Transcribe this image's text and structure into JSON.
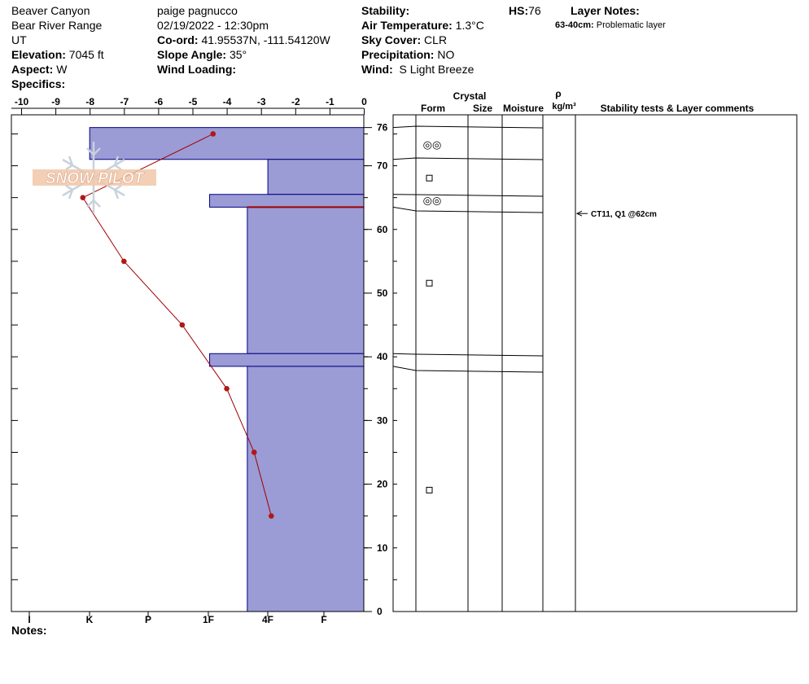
{
  "header": {
    "location": "Beaver Canyon",
    "range": "Bear River Range",
    "state": "UT",
    "elevation_label": "Elevation:",
    "elevation_value": "7045 ft",
    "aspect_label": "Aspect:",
    "aspect_value": "W",
    "specifics_label": "Specifics:",
    "observer": "paige pagnucco",
    "datetime": "02/19/2022 - 12:30pm",
    "coord_label": "Co-ord:",
    "coord_value": "41.95537N, -111.54120W",
    "slope_label": "Slope Angle:",
    "slope_value": "35°",
    "wind_loading_label": "Wind Loading:",
    "stability_label": "Stability:",
    "air_temp_label": "Air Temperature:",
    "air_temp_value": "1.3°C",
    "sky_label": "Sky Cover:",
    "sky_value": "CLR",
    "precip_label": "Precipitation:",
    "precip_value": "NO",
    "wind_label": "Wind:",
    "wind_value": "S Light Breeze",
    "hs_label": "HS:",
    "hs_value": "76",
    "layer_notes_label": "Layer Notes:",
    "layer_note_range": "63-40cm:",
    "layer_note_text": "Problematic layer"
  },
  "notes_label": "Notes:",
  "logo_text": "SNOW PILOT",
  "table_headers": {
    "crystal": "Crystal",
    "form": "Form",
    "size": "Size",
    "moisture": "Moisture",
    "rho": "ρ",
    "density_unit": "kg/m³",
    "comments": "Stability tests & Layer comments"
  },
  "stability_test": "CT11, Q1 @62cm",
  "chart_data": {
    "type": "snow-profile",
    "temperature_axis": {
      "ticks": [
        "-10",
        "-9",
        "-8",
        "-7",
        "-6",
        "-5",
        "-4",
        "-3",
        "-2",
        "-1",
        "0"
      ],
      "range": [
        -10,
        0
      ]
    },
    "depth_axis": {
      "ticks": [
        "76",
        "70",
        "60",
        "50",
        "40",
        "30",
        "20",
        "10",
        "0"
      ],
      "range": [
        0,
        76
      ],
      "unit": "cm"
    },
    "hardness_axis": {
      "ticks": [
        "I",
        "K",
        "P",
        "1F",
        "4F",
        "F"
      ]
    },
    "temperature_profile": [
      {
        "depth": 75,
        "temp": -4.4
      },
      {
        "depth": 65,
        "temp": -8.2
      },
      {
        "depth": 55,
        "temp": -7.0
      },
      {
        "depth": 45,
        "temp": -5.3
      },
      {
        "depth": 35,
        "temp": -4.0
      },
      {
        "depth": 25,
        "temp": -3.2
      },
      {
        "depth": 15,
        "temp": -2.7
      }
    ],
    "layers": [
      {
        "top": 76,
        "bottom": 71,
        "hardness": 8.0,
        "form": "◎◎"
      },
      {
        "top": 71,
        "bottom": 65.5,
        "hardness": 2.8,
        "form": "□"
      },
      {
        "top": 65.5,
        "bottom": 63.5,
        "hardness": 4.5,
        "form": "◎◎"
      },
      {
        "top": 63.5,
        "bottom": 40.5,
        "hardness": 3.4,
        "form": "□"
      },
      {
        "top": 40.5,
        "bottom": 38.5,
        "hardness": 4.5,
        "form": ""
      },
      {
        "top": 38.5,
        "bottom": 0,
        "hardness": 3.4,
        "form": "□"
      }
    ],
    "form_markers": [
      {
        "depth": 73.3,
        "glyph": "◎◎"
      },
      {
        "depth": 68.0,
        "glyph": "□"
      },
      {
        "depth": 64.5,
        "glyph": "◎◎"
      },
      {
        "depth": 51.5,
        "glyph": "□"
      },
      {
        "depth": 19.0,
        "glyph": "□"
      }
    ],
    "stability_test_depth": 62.5,
    "colors": {
      "layer_fill": "#9b9bd6",
      "layer_stroke": "#000080",
      "temp_line": "#a00000",
      "temp_point": "#b01818"
    }
  }
}
